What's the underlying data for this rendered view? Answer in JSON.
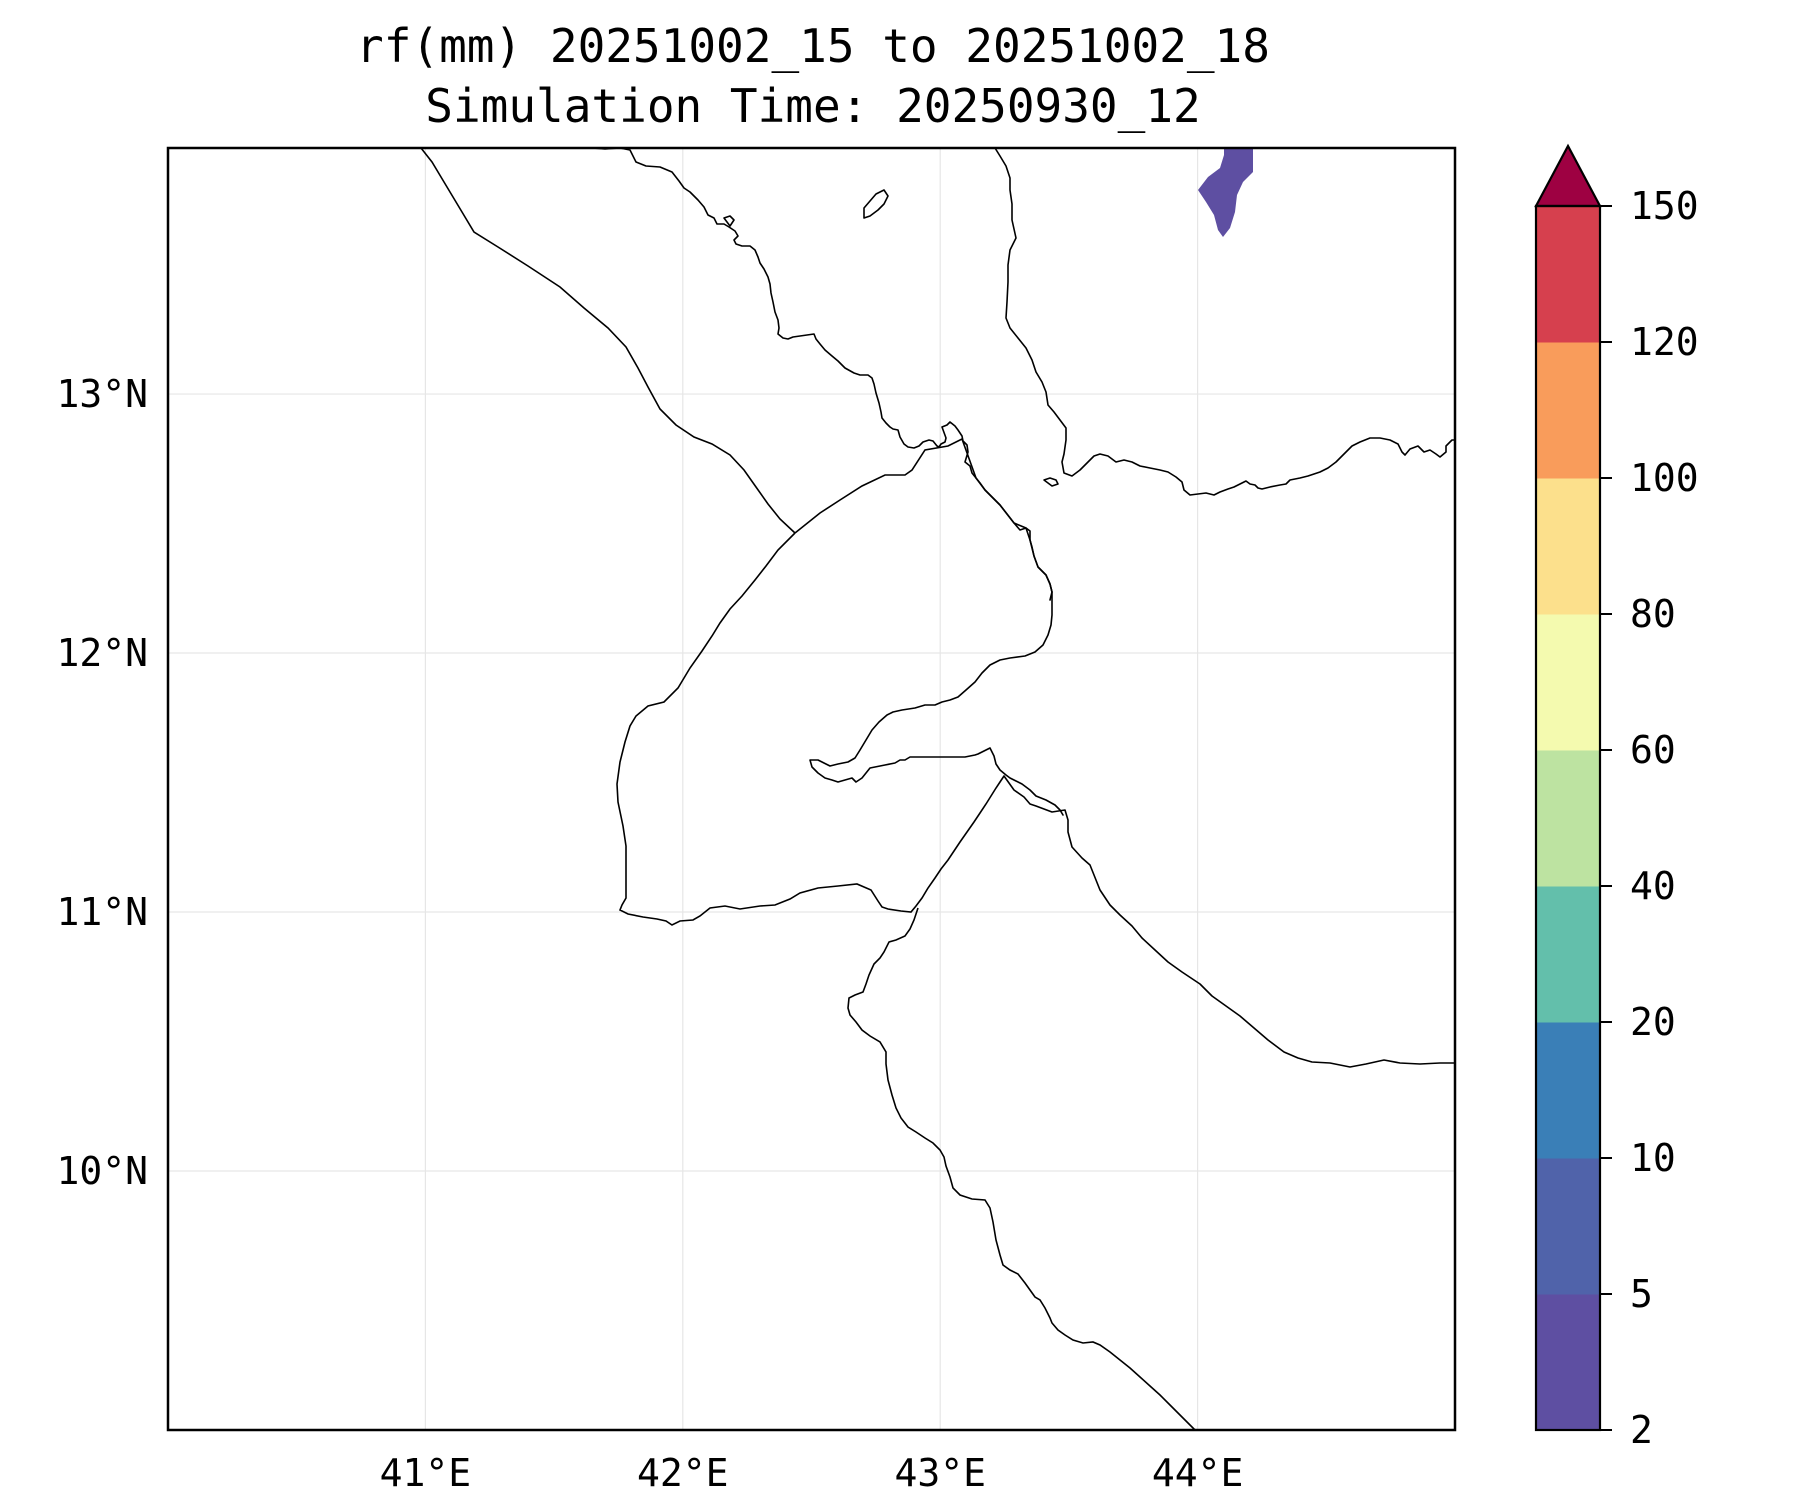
{
  "title": {
    "line1": "rf(mm) 20251002_15 to 20251002_18",
    "line2": "Simulation Time: 20250930_12"
  },
  "map": {
    "lon_range": [
      40.0,
      45.0
    ],
    "lat_range": [
      9.0,
      13.95
    ],
    "gridlines": true,
    "x_ticks": [
      {
        "value": 41,
        "label": "41°E"
      },
      {
        "value": 42,
        "label": "42°E"
      },
      {
        "value": 43,
        "label": "43°E"
      },
      {
        "value": 44,
        "label": "44°E"
      }
    ],
    "y_ticks": [
      {
        "value": 13,
        "label": "13°N"
      },
      {
        "value": 12,
        "label": "12°N"
      },
      {
        "value": 11,
        "label": "11°N"
      },
      {
        "value": 10,
        "label": "10°N"
      }
    ],
    "features": [
      "coastlines",
      "country-borders"
    ],
    "rainfall_patches": [
      {
        "category": "2-5 mm",
        "color": "#5e4fa2",
        "location": "near 44.1°E, 13.8°N"
      }
    ]
  },
  "colorbar": {
    "extend": "max",
    "levels": [
      2,
      5,
      10,
      20,
      40,
      60,
      80,
      100,
      120,
      150
    ],
    "labels": [
      "2",
      "5",
      "10",
      "20",
      "40",
      "60",
      "80",
      "100",
      "120",
      "150"
    ],
    "colors": [
      "#5e4fa2",
      "#5063aa",
      "#3a7fb7",
      "#63bfab",
      "#bde3a1",
      "#f4faaf",
      "#fce08c",
      "#f99c5b",
      "#d6404e"
    ],
    "extend_color": "#9e0142"
  }
}
